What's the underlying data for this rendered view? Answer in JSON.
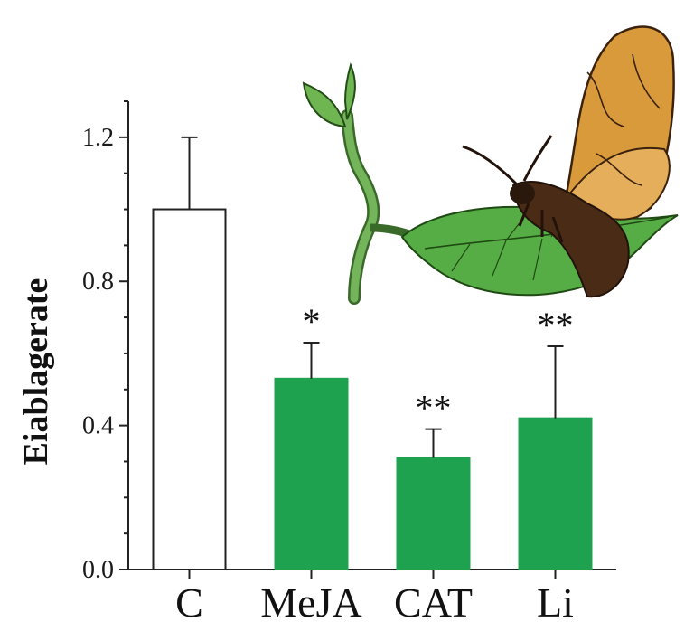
{
  "chart_data": {
    "type": "bar",
    "ylabel": "Eiablagerate",
    "xlabel": "",
    "title": "",
    "ylim": [
      0,
      1.3
    ],
    "yticks": [
      "0.0",
      "0.4",
      "0.8",
      "1.2"
    ],
    "categories": [
      "C",
      "MeJA",
      "CAT",
      "Li"
    ],
    "values": [
      1.0,
      0.53,
      0.31,
      0.42
    ],
    "errors": [
      0.2,
      0.1,
      0.08,
      0.2
    ],
    "significance": [
      "",
      "*",
      "**",
      "**"
    ],
    "colors": [
      "#ffffff",
      "#1fa24f",
      "#1fa24f",
      "#1fa24f"
    ],
    "grid": false,
    "illustration": "moth-on-leaf-icon"
  }
}
